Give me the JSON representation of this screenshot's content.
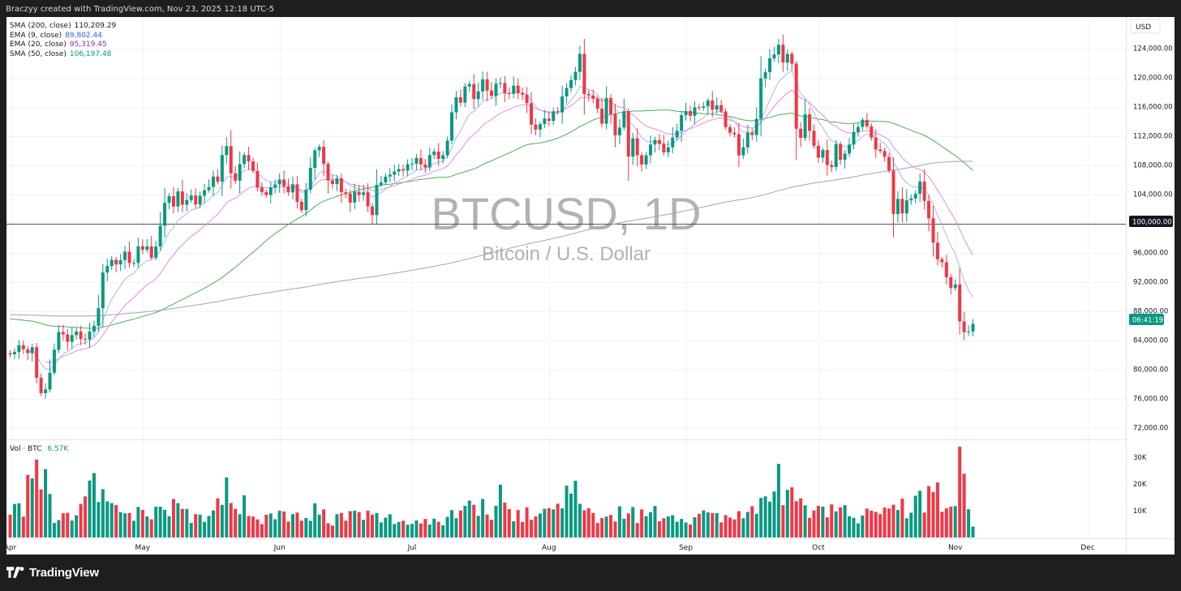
{
  "attribution": "Braczyy created with TradingView.com, Nov 23, 2025 12:18 UTC-5",
  "footer_brand": "TradingView",
  "currency_label": "USD",
  "watermark": {
    "symbol": "BTCUSD, 1D",
    "name": "Bitcoin / U.S. Dollar"
  },
  "indicators": [
    {
      "label": "SMA (200, close)",
      "value": "110,209.29",
      "color": "#131722"
    },
    {
      "label": "EMA (9, close)",
      "value": "89,802.44",
      "color": "#2962ff"
    },
    {
      "label": "EMA (20, close)",
      "value": "95,319.45",
      "color": "#9c27b0"
    },
    {
      "label": "SMA (50, close)",
      "value": "106,197.48",
      "color": "#089981"
    }
  ],
  "volume_legend": {
    "label": "Vol · BTC",
    "value": "6.57K"
  },
  "countdown": "06:41:19",
  "hline_label": "100,000.00",
  "colors": {
    "up": "#089981",
    "down": "#f23645",
    "ema9": "#a7b8f5",
    "ema20": "#e48be6",
    "sma50": "#4caf50",
    "sma200": "#a6a6a6"
  },
  "chart_data": {
    "type": "candlestick",
    "title": "BTCUSD, 1D",
    "subtitle": "Bitcoin / U.S. Dollar",
    "interval": "1D",
    "x_start": "2025-04-01",
    "x_ticks": [
      "Apr",
      "May",
      "Jun",
      "Jul",
      "Aug",
      "Sep",
      "Oct",
      "Nov",
      "Dec"
    ],
    "y_ticks": [
      "124,000.00",
      "120,000.00",
      "116,000.00",
      "112,000.00",
      "108,000.00",
      "104,000.00",
      "100,000.00",
      "96,000.00",
      "92,000.00",
      "88,000.00",
      "84,000.00",
      "80,000.00",
      "76,000.00",
      "72,000.00"
    ],
    "ylim": [
      70500,
      128300
    ],
    "horizontal_line": 100000,
    "volume_ticks": [
      "30K",
      "20K",
      "10K"
    ],
    "volume_ylim": [
      0,
      34000
    ],
    "anchors": [
      [
        0,
        82500
      ],
      [
        1,
        82000
      ],
      [
        2,
        83500
      ],
      [
        3,
        83000
      ],
      [
        4,
        82000
      ],
      [
        5,
        83000
      ],
      [
        6,
        79000
      ],
      [
        7,
        76500
      ],
      [
        8,
        77000
      ],
      [
        9,
        79500
      ],
      [
        10,
        82500
      ],
      [
        11,
        85000
      ],
      [
        12,
        84500
      ],
      [
        13,
        84000
      ],
      [
        14,
        84800
      ],
      [
        15,
        85000
      ],
      [
        16,
        84000
      ],
      [
        17,
        84500
      ],
      [
        18,
        85000
      ],
      [
        19,
        86000
      ],
      [
        20,
        88000
      ],
      [
        21,
        93000
      ],
      [
        22,
        94500
      ],
      [
        23,
        95000
      ],
      [
        24,
        94000
      ],
      [
        25,
        94800
      ],
      [
        26,
        96000
      ],
      [
        27,
        94500
      ],
      [
        28,
        94200
      ],
      [
        29,
        96500
      ],
      [
        30,
        96500
      ],
      [
        31,
        97000
      ],
      [
        32,
        95000
      ],
      [
        33,
        97000
      ],
      [
        34,
        100000
      ],
      [
        35,
        103000
      ],
      [
        36,
        103800
      ],
      [
        37,
        102500
      ],
      [
        38,
        104000
      ],
      [
        39,
        102500
      ],
      [
        40,
        103000
      ],
      [
        41,
        103500
      ],
      [
        42,
        103000
      ],
      [
        43,
        104000
      ],
      [
        44,
        104500
      ],
      [
        45,
        105000
      ],
      [
        46,
        106500
      ],
      [
        47,
        106000
      ],
      [
        48,
        109000
      ],
      [
        49,
        111000
      ],
      [
        50,
        107000
      ],
      [
        51,
        106000
      ],
      [
        52,
        108000
      ],
      [
        53,
        109000
      ],
      [
        54,
        108500
      ],
      [
        55,
        107500
      ],
      [
        56,
        105000
      ],
      [
        57,
        104500
      ],
      [
        58,
        104000
      ],
      [
        59,
        105000
      ],
      [
        60,
        105500
      ],
      [
        61,
        106000
      ],
      [
        62,
        105000
      ],
      [
        63,
        104500
      ],
      [
        64,
        105000
      ],
      [
        65,
        103000
      ],
      [
        66,
        101500
      ],
      [
        67,
        104500
      ],
      [
        68,
        107500
      ],
      [
        69,
        110000
      ],
      [
        70,
        110500
      ],
      [
        71,
        108000
      ],
      [
        72,
        105500
      ],
      [
        73,
        105500
      ],
      [
        74,
        106000
      ],
      [
        75,
        104500
      ],
      [
        76,
        104000
      ],
      [
        77,
        103000
      ],
      [
        78,
        104500
      ],
      [
        79,
        104000
      ],
      [
        80,
        104000
      ],
      [
        81,
        102000
      ],
      [
        82,
        101500
      ],
      [
        83,
        105000
      ],
      [
        84,
        106000
      ],
      [
        85,
        106500
      ],
      [
        86,
        107000
      ],
      [
        87,
        107500
      ],
      [
        88,
        107000
      ],
      [
        89,
        107500
      ],
      [
        90,
        108000
      ],
      [
        91,
        108500
      ],
      [
        92,
        109000
      ],
      [
        93,
        108000
      ],
      [
        94,
        108000
      ],
      [
        95,
        109000
      ],
      [
        96,
        109500
      ],
      [
        97,
        108500
      ],
      [
        98,
        109000
      ],
      [
        99,
        111000
      ],
      [
        100,
        115000
      ],
      [
        101,
        117500
      ],
      [
        102,
        117000
      ],
      [
        103,
        119000
      ],
      [
        104,
        119500
      ],
      [
        105,
        117500
      ],
      [
        106,
        118000
      ],
      [
        107,
        120000
      ],
      [
        108,
        118000
      ],
      [
        109,
        117500
      ],
      [
        110,
        119000
      ],
      [
        111,
        119500
      ],
      [
        112,
        117500
      ],
      [
        113,
        118000
      ],
      [
        114,
        119000
      ],
      [
        115,
        117500
      ],
      [
        116,
        118000
      ],
      [
        117,
        116500
      ],
      [
        118,
        114000
      ],
      [
        119,
        112500
      ],
      [
        120,
        113500
      ],
      [
        121,
        114000
      ],
      [
        122,
        114500
      ],
      [
        123,
        115000
      ],
      [
        124,
        115500
      ],
      [
        125,
        117000
      ],
      [
        126,
        118500
      ],
      [
        127,
        119500
      ],
      [
        128,
        121000
      ],
      [
        129,
        123500
      ],
      [
        130,
        118000
      ],
      [
        131,
        117500
      ],
      [
        132,
        117500
      ],
      [
        133,
        115500
      ],
      [
        134,
        113500
      ],
      [
        135,
        117000
      ],
      [
        136,
        115000
      ],
      [
        137,
        112500
      ],
      [
        138,
        113500
      ],
      [
        139,
        115000
      ],
      [
        140,
        109500
      ],
      [
        141,
        111500
      ],
      [
        142,
        109000
      ],
      [
        143,
        108500
      ],
      [
        144,
        109000
      ],
      [
        145,
        110500
      ],
      [
        146,
        111000
      ],
      [
        147,
        110500
      ],
      [
        148,
        109500
      ],
      [
        149,
        110500
      ],
      [
        150,
        112000
      ],
      [
        151,
        112500
      ],
      [
        152,
        114500
      ],
      [
        153,
        115500
      ],
      [
        154,
        115000
      ],
      [
        155,
        116000
      ],
      [
        156,
        115500
      ],
      [
        157,
        116000
      ],
      [
        158,
        117000
      ],
      [
        159,
        115500
      ],
      [
        160,
        116000
      ],
      [
        161,
        115500
      ],
      [
        162,
        113000
      ],
      [
        163,
        112500
      ],
      [
        164,
        112500
      ],
      [
        165,
        109500
      ],
      [
        166,
        110000
      ],
      [
        167,
        112000
      ],
      [
        168,
        112000
      ],
      [
        169,
        114000
      ],
      [
        170,
        119500
      ],
      [
        171,
        121000
      ],
      [
        172,
        122500
      ],
      [
        173,
        123500
      ],
      [
        174,
        124500
      ],
      [
        175,
        122000
      ],
      [
        176,
        123000
      ],
      [
        177,
        121500
      ],
      [
        178,
        113000
      ],
      [
        179,
        112000
      ],
      [
        180,
        115000
      ],
      [
        181,
        113000
      ],
      [
        182,
        110500
      ],
      [
        183,
        109000
      ],
      [
        184,
        110000
      ],
      [
        185,
        108000
      ],
      [
        186,
        107500
      ],
      [
        187,
        111000
      ],
      [
        188,
        108500
      ],
      [
        189,
        110000
      ],
      [
        190,
        111000
      ],
      [
        191,
        112500
      ],
      [
        192,
        113500
      ],
      [
        193,
        114000
      ],
      [
        194,
        113500
      ],
      [
        195,
        112000
      ],
      [
        196,
        110000
      ],
      [
        197,
        110000
      ],
      [
        198,
        109500
      ],
      [
        199,
        107000
      ],
      [
        200,
        101000
      ],
      [
        201,
        103000
      ],
      [
        202,
        101000
      ],
      [
        203,
        103000
      ],
      [
        204,
        103000
      ],
      [
        205,
        104500
      ],
      [
        206,
        105500
      ],
      [
        207,
        103000
      ],
      [
        208,
        100500
      ],
      [
        209,
        97000
      ],
      [
        210,
        95500
      ],
      [
        211,
        95000
      ],
      [
        212,
        93000
      ],
      [
        213,
        91500
      ],
      [
        214,
        92000
      ],
      [
        215,
        87000
      ],
      [
        216,
        85000
      ],
      [
        217,
        84800
      ],
      [
        218,
        86500
      ]
    ],
    "volume_anchors": [
      [
        0,
        7500
      ],
      [
        3,
        12000
      ],
      [
        6,
        27000
      ],
      [
        7,
        22000
      ],
      [
        8,
        26000
      ],
      [
        10,
        9000
      ],
      [
        14,
        6000
      ],
      [
        20,
        20000
      ],
      [
        22,
        11000
      ],
      [
        27,
        8000
      ],
      [
        33,
        10000
      ],
      [
        34,
        15000
      ],
      [
        40,
        9000
      ],
      [
        45,
        7000
      ],
      [
        48,
        13000
      ],
      [
        49,
        19000
      ],
      [
        55,
        8000
      ],
      [
        60,
        7500
      ],
      [
        62,
        9000
      ],
      [
        70,
        10000
      ],
      [
        72,
        7000
      ],
      [
        80,
        8000
      ],
      [
        90,
        6000
      ],
      [
        98,
        6500
      ],
      [
        102,
        12000
      ],
      [
        104,
        13000
      ],
      [
        110,
        9000
      ],
      [
        111,
        25000
      ],
      [
        113,
        10000
      ],
      [
        120,
        8000
      ],
      [
        121,
        9000
      ],
      [
        124,
        12000
      ],
      [
        127,
        25000
      ],
      [
        130,
        7500
      ],
      [
        136,
        10000
      ],
      [
        141,
        9000
      ],
      [
        150,
        8000
      ],
      [
        160,
        8000
      ],
      [
        168,
        9000
      ],
      [
        170,
        11000
      ],
      [
        172,
        12000
      ],
      [
        174,
        23000
      ],
      [
        177,
        14000
      ],
      [
        178,
        12000
      ],
      [
        180,
        10000
      ],
      [
        183,
        13000
      ],
      [
        188,
        10000
      ],
      [
        192,
        7000
      ],
      [
        196,
        9000
      ],
      [
        198,
        13000
      ],
      [
        200,
        17000
      ],
      [
        203,
        10000
      ],
      [
        206,
        14000
      ],
      [
        210,
        20000
      ],
      [
        212,
        12000
      ],
      [
        214,
        19000
      ],
      [
        215,
        32000
      ],
      [
        217,
        8000
      ],
      [
        218,
        6570
      ]
    ]
  }
}
